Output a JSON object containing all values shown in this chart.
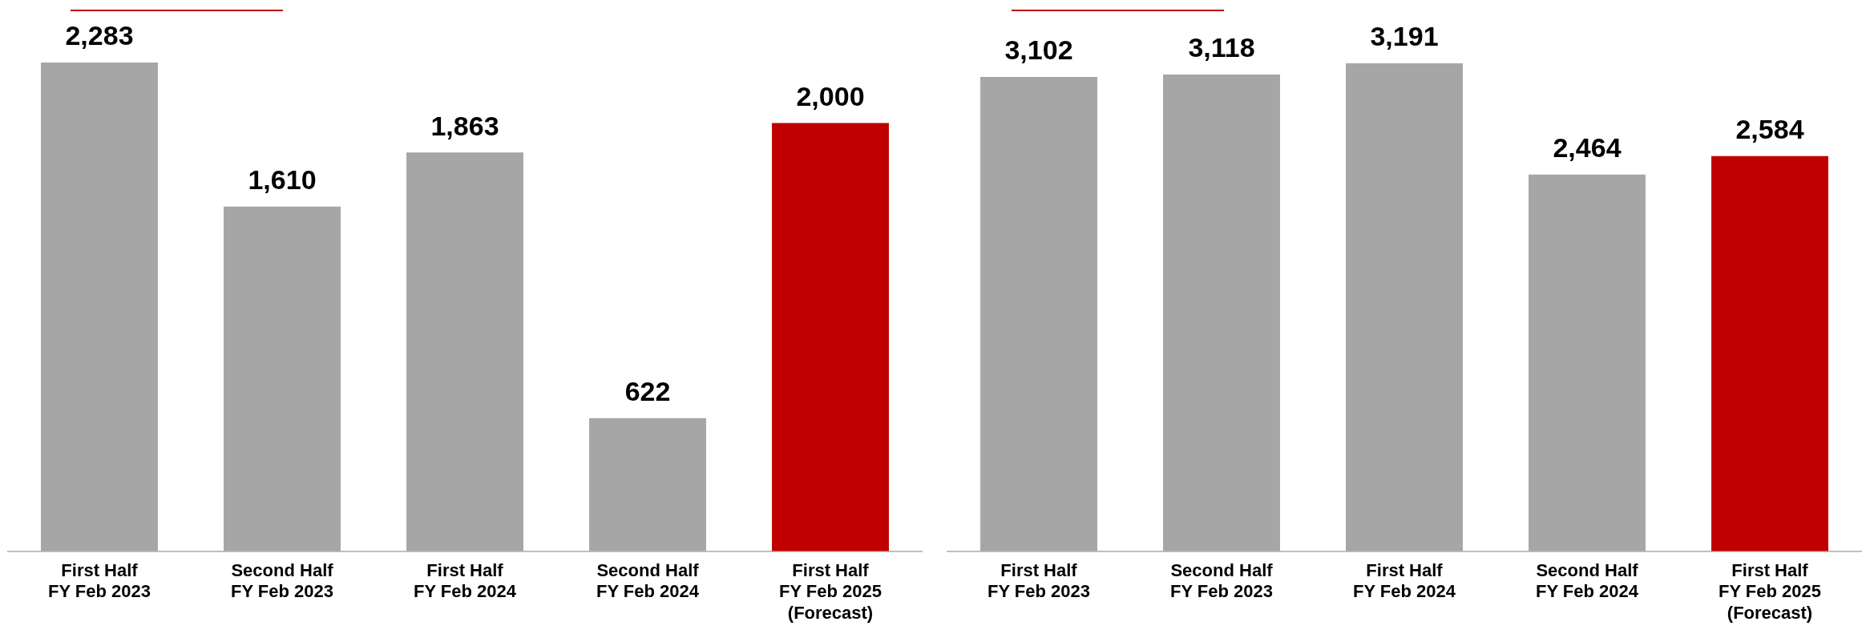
{
  "chart_data": [
    {
      "type": "bar",
      "categories": [
        "First Half\nFY Feb 2023",
        "Second Half\nFY Feb 2023",
        "First Half\nFY Feb 2024",
        "Second Half\nFY Feb 2024",
        "First Half\nFY Feb 2025\n(Forecast)"
      ],
      "values": [
        2283,
        1610,
        1863,
        622,
        2000
      ],
      "value_labels": [
        "2,283",
        "1,610",
        "1,863",
        "622",
        "2,000"
      ],
      "colors": [
        "#a6a6a6",
        "#a6a6a6",
        "#a6a6a6",
        "#a6a6a6",
        "#c00000"
      ],
      "grid": false,
      "legend": false
    },
    {
      "type": "bar",
      "categories": [
        "First Half\nFY Feb 2023",
        "Second Half\nFY Feb 2023",
        "First Half\nFY Feb 2024",
        "Second Half\nFY Feb 2024",
        "First Half\nFY Feb 2025\n(Forecast)"
      ],
      "values": [
        3102,
        3118,
        3191,
        2464,
        2584
      ],
      "value_labels": [
        "3,102",
        "3,118",
        "3,191",
        "2,464",
        "2,584"
      ],
      "colors": [
        "#a6a6a6",
        "#a6a6a6",
        "#a6a6a6",
        "#a6a6a6",
        "#c00000"
      ],
      "grid": false,
      "legend": false
    }
  ]
}
